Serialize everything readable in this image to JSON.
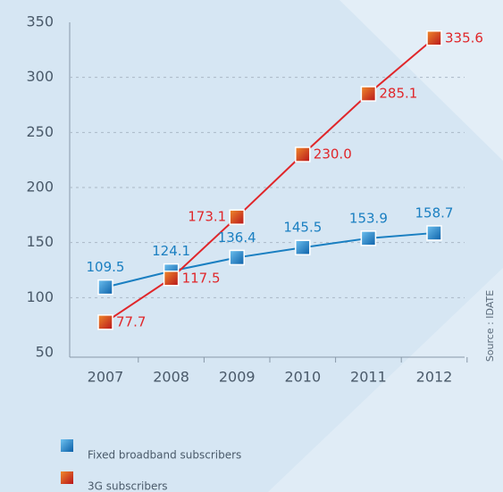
{
  "chart_data": {
    "type": "line",
    "source": "Source : IDATE",
    "categories": [
      "2007",
      "2008",
      "2009",
      "2010",
      "2011",
      "2012"
    ],
    "series": [
      {
        "name": "Fixed broadband subscribers",
        "color": "#1a7fc1",
        "values": [
          109.5,
          124.1,
          136.4,
          145.5,
          153.9,
          158.7
        ],
        "value_labels": [
          "109.5",
          "124.1",
          "136.4",
          "145.5",
          "153.9",
          "158.7"
        ]
      },
      {
        "name": "3G subscribers",
        "color": "#e0262a",
        "values": [
          77.7,
          117.5,
          173.1,
          230.0,
          285.1,
          335.6
        ],
        "value_labels": [
          "77.7",
          "117.5",
          "173.1",
          "230.0",
          "285.1",
          "335.6"
        ]
      }
    ],
    "ylim": [
      50,
      350
    ],
    "yticks": [
      50,
      100,
      150,
      200,
      250,
      300,
      350
    ],
    "grid": true
  }
}
